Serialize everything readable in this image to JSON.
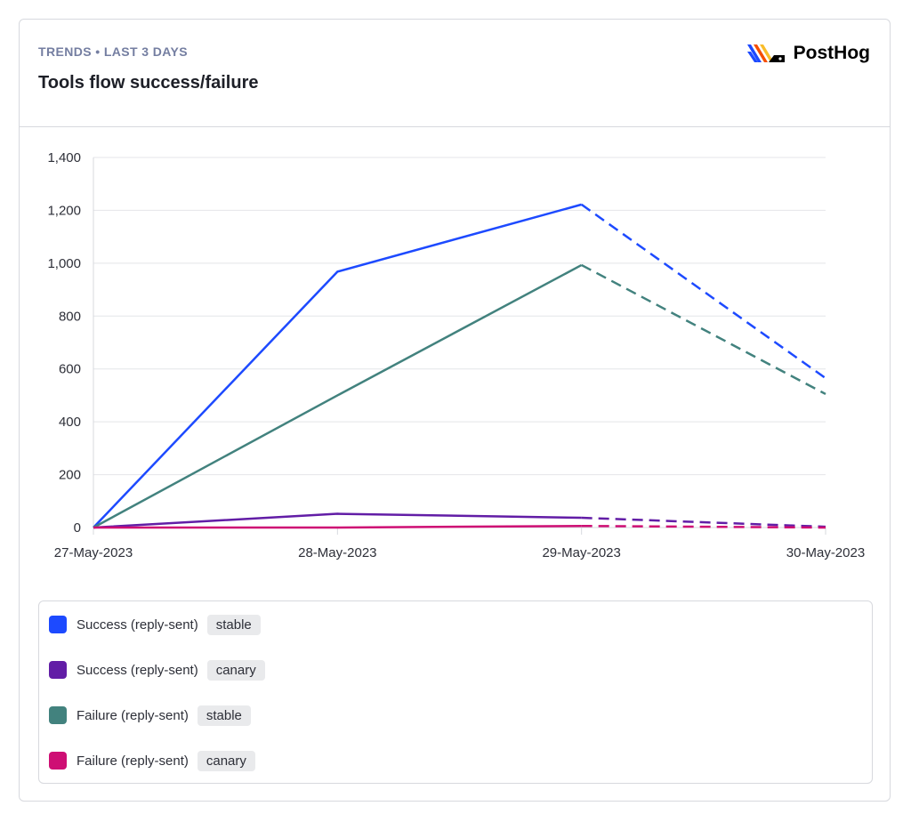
{
  "header": {
    "eyebrow": "TRENDS • LAST 3 DAYS",
    "title": "Tools flow success/failure",
    "brand": "PostHog",
    "brand_icon": "posthog-logo-icon"
  },
  "legend": [
    {
      "label": "Success (reply-sent)",
      "tag": "stable",
      "color": "#1d4aff"
    },
    {
      "label": "Success (reply-sent)",
      "tag": "canary",
      "color": "#621da6"
    },
    {
      "label": "Failure (reply-sent)",
      "tag": "stable",
      "color": "#42827e"
    },
    {
      "label": "Failure (reply-sent)",
      "tag": "canary",
      "color": "#ce0e74"
    }
  ],
  "chart_data": {
    "type": "line",
    "categories": [
      "27-May-2023",
      "28-May-2023",
      "29-May-2023",
      "30-May-2023"
    ],
    "y_ticks": [
      "0",
      "200",
      "400",
      "600",
      "800",
      "1,000",
      "1,200",
      "1,400"
    ],
    "ylim": [
      0,
      1400
    ],
    "grid": true,
    "incomplete_last_period": true,
    "series": [
      {
        "name": "Success (reply-sent) stable",
        "color": "#1d4aff",
        "values": [
          0,
          968,
          1222,
          565
        ]
      },
      {
        "name": "Success (reply-sent) canary",
        "color": "#621da6",
        "values": [
          0,
          52,
          37,
          3
        ]
      },
      {
        "name": "Failure (reply-sent) stable",
        "color": "#42827e",
        "values": [
          0,
          500,
          993,
          505
        ]
      },
      {
        "name": "Failure (reply-sent) canary",
        "color": "#ce0e74",
        "values": [
          0,
          0,
          6,
          0
        ]
      }
    ]
  }
}
